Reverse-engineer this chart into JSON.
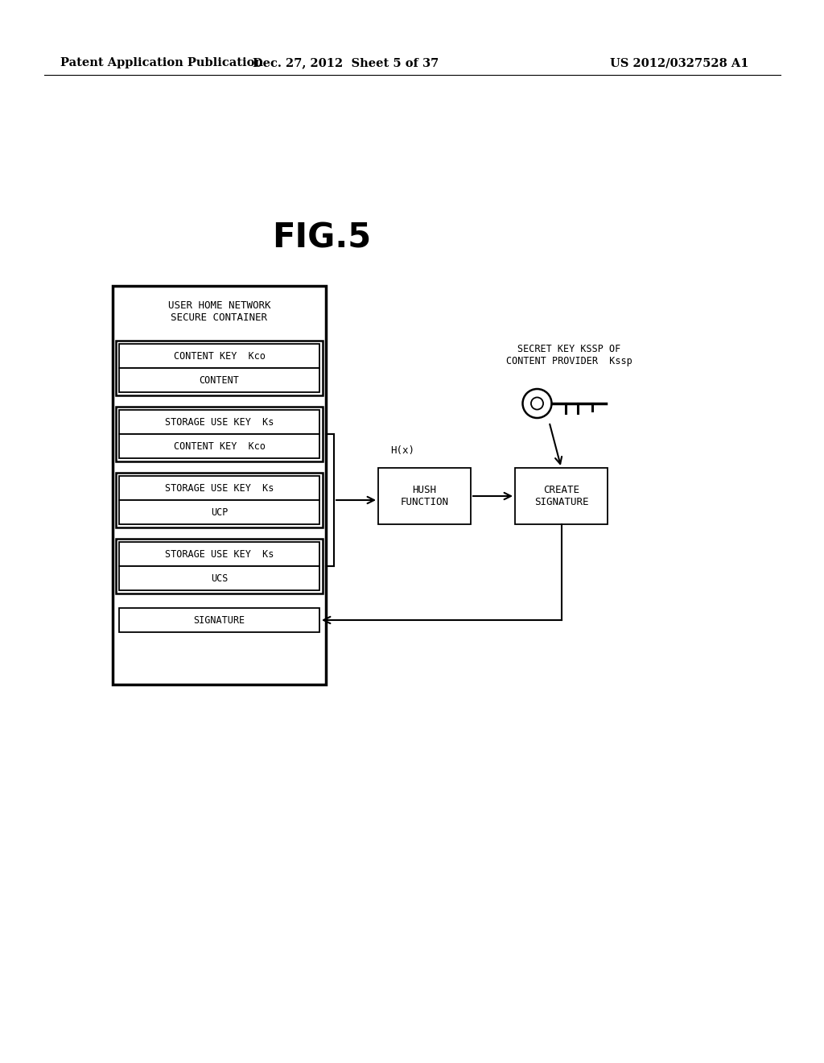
{
  "bg_color": "#ffffff",
  "header_left": "Patent Application Publication",
  "header_center": "Dec. 27, 2012  Sheet 5 of 37",
  "header_right": "US 2012/0327528 A1",
  "fig_title": "FIG.5",
  "container_title": "USER HOME NETWORK\nSECURE CONTAINER",
  "secret_key_label": "SECRET KEY KSSP OF\nCONTENT PROVIDER  Kssp",
  "hx_label": "H(x)"
}
